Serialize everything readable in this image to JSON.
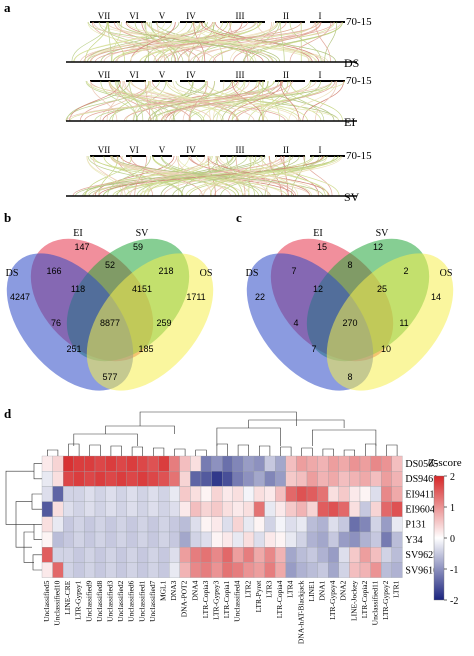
{
  "panels": {
    "a": "a",
    "b": "b",
    "c": "c",
    "d": "d"
  },
  "panel_a": {
    "chromosomes": [
      "VII",
      "VI",
      "V",
      "IV",
      "III",
      "II",
      "I"
    ],
    "reference": "70-15",
    "rows": [
      {
        "genome": "DS"
      },
      {
        "genome": "EI"
      },
      {
        "genome": "SV"
      }
    ]
  },
  "venn_b": {
    "sets": [
      "EI",
      "SV",
      "DS",
      "OS"
    ],
    "regions": {
      "EI_only": "147",
      "SV_only": "59",
      "DS_only": "4247",
      "OS_only": "1711",
      "DS_EI": "166",
      "EI_SV": "52",
      "SV_OS": "218",
      "DS_EI_SV": "118",
      "EI_SV_OS": "4151",
      "DS_SV": "76",
      "all": "8877",
      "EI_OS": "259",
      "DS_SV_OS": "251",
      "DS_EI_OS": "185",
      "DS_OS": "577"
    }
  },
  "venn_c": {
    "sets": [
      "EI",
      "SV",
      "DS",
      "OS"
    ],
    "regions": {
      "EI_only": "15",
      "SV_only": "12",
      "DS_only": "22",
      "OS_only": "14",
      "DS_EI": "7",
      "EI_SV": "8",
      "SV_OS": "2",
      "DS_EI_SV": "12",
      "EI_SV_OS": "25",
      "DS_SV": "4",
      "all": "270",
      "EI_OS": "11",
      "DS_SV_OS": "7",
      "DS_EI_OS": "10",
      "DS_OS": "8"
    }
  },
  "chart_data": {
    "type": "heatmap",
    "legend_title": "Z-score",
    "scale": {
      "ticks": [
        2,
        1,
        0,
        -1,
        -2
      ],
      "min": -2,
      "max": 2,
      "colors": {
        "low": "#1a237e",
        "mid": "#ffffff",
        "high": "#d62728"
      }
    },
    "rows": [
      "DS0505",
      "DS9461",
      "EI9411",
      "EI9604",
      "P131",
      "Y34",
      "SV9623",
      "SV9610"
    ],
    "columns": [
      "Unclassified5",
      "Unclassified10",
      "LINE-CRE",
      "LTR-Gypsy1",
      "Unclassified9",
      "Unclassified8",
      "Unclassified3",
      "Unclassified2",
      "Unclassified6",
      "Unclassified1",
      "Unclassified7",
      "MGL1",
      "DNA3",
      "DNA-POT2",
      "DNA4",
      "LTR-Copia3",
      "LTR-Gypsy3",
      "LTR-Copia1",
      "Unclassified4",
      "LTR2",
      "LTR-Pyret",
      "LTR3",
      "LTR-Copia4",
      "LTR4",
      "DNA-hAT-Blackjack",
      "LINE1",
      "DNA1",
      "LTR-Gypsy4",
      "DNA2",
      "LINE-Jockey",
      "LTR-Copia2",
      "Unclassified11",
      "LTR-Gypsy2",
      "LTR1"
    ],
    "values": [
      [
        0.2,
        0.4,
        1.9,
        1.8,
        1.8,
        1.7,
        1.8,
        1.7,
        1.8,
        1.7,
        1.6,
        1.8,
        1.2,
        0.6,
        0.3,
        -1.2,
        -1.0,
        -1.3,
        -1.1,
        -0.9,
        -1.0,
        -0.5,
        -0.8,
        0.6,
        0.9,
        0.8,
        0.7,
        0.9,
        0.8,
        1.0,
        0.9,
        1.1,
        1.0,
        0.6
      ],
      [
        -0.2,
        0.3,
        1.7,
        1.8,
        1.7,
        1.8,
        1.7,
        1.8,
        1.7,
        1.8,
        1.7,
        1.6,
        1.3,
        0.4,
        -1.4,
        -1.5,
        -1.8,
        -1.6,
        -1.2,
        -1.0,
        -0.8,
        -1.1,
        -0.9,
        0.5,
        0.6,
        0.9,
        0.7,
        0.8,
        0.6,
        0.7,
        0.8,
        0.6,
        0.9,
        0.7
      ],
      [
        -0.3,
        -1.4,
        -0.4,
        -0.4,
        -0.3,
        -0.4,
        -0.3,
        -0.4,
        -0.3,
        -0.4,
        -0.3,
        -0.4,
        -0.2,
        0.5,
        0.3,
        0.1,
        0.4,
        0.2,
        0.3,
        -0.1,
        0.3,
        0.2,
        0.6,
        1.4,
        1.6,
        1.5,
        1.3,
        0.3,
        0.5,
        0.2,
        0.1,
        -0.3,
        1.1,
        0.8
      ],
      [
        -1.5,
        0.3,
        -0.3,
        -0.4,
        -0.3,
        -0.4,
        -0.3,
        -0.4,
        -0.3,
        -0.4,
        -0.3,
        -0.4,
        -0.3,
        0.2,
        0.6,
        0.4,
        0.5,
        0.3,
        0.2,
        0.3,
        1.3,
        -0.2,
        0.2,
        0.5,
        0.7,
        0.4,
        1.5,
        1.6,
        1.4,
        0.3,
        -0.5,
        0.4,
        1.4,
        1.6
      ],
      [
        0.3,
        -0.2,
        -0.5,
        -0.4,
        -0.5,
        -0.4,
        -0.5,
        -0.4,
        -0.5,
        -0.4,
        -0.5,
        -0.4,
        -0.5,
        -0.6,
        -0.3,
        0.1,
        0.2,
        -0.3,
        0.4,
        -0.2,
        0.1,
        -0.4,
        -0.1,
        -0.3,
        -0.2,
        -0.6,
        -0.7,
        -0.3,
        -0.5,
        -1.3,
        -1.1,
        -0.4,
        -0.9,
        -0.2
      ],
      [
        0.1,
        -0.6,
        -0.5,
        -0.4,
        -0.5,
        -0.4,
        -0.5,
        -0.4,
        -0.5,
        -0.4,
        -0.5,
        -0.4,
        -0.5,
        -0.8,
        -0.4,
        -0.3,
        0.1,
        0.2,
        -0.2,
        0.3,
        -0.3,
        0.2,
        0.1,
        -0.2,
        -0.4,
        -0.7,
        -0.8,
        -0.5,
        -0.9,
        -1.0,
        -0.7,
        -0.5,
        -1.2,
        -0.6
      ],
      [
        1.5,
        -0.4,
        -0.4,
        -0.5,
        -0.4,
        -0.5,
        -0.4,
        -0.5,
        -0.4,
        -0.5,
        -0.4,
        -0.5,
        -0.3,
        0.9,
        1.2,
        1.3,
        1.1,
        1.4,
        0.9,
        1.2,
        0.8,
        1.1,
        0.7,
        -0.8,
        -0.6,
        -0.5,
        -0.7,
        -0.9,
        -0.3,
        0.5,
        0.9,
        0.6,
        -0.4,
        -0.6
      ],
      [
        0.2,
        1.4,
        -0.4,
        -0.5,
        -0.4,
        -0.5,
        -0.4,
        -0.5,
        -0.4,
        -0.5,
        -0.4,
        -0.5,
        -0.2,
        0.7,
        1.1,
        1.2,
        1.0,
        1.3,
        1.2,
        1.0,
        0.9,
        1.2,
        0.8,
        -0.9,
        -0.7,
        -0.6,
        -0.5,
        -0.8,
        -0.4,
        0.6,
        0.7,
        1.0,
        -0.6,
        -0.7
      ]
    ]
  }
}
